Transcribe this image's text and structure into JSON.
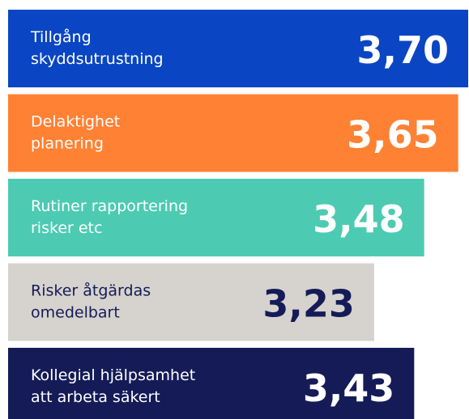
{
  "chart_data": {
    "type": "bar",
    "orientation": "horizontal",
    "categories": [
      [
        "Tillgång",
        "skyddsutrustning"
      ],
      [
        "Delaktighet",
        "planering"
      ],
      [
        "Rutiner rapportering",
        "risker etc"
      ],
      [
        "Risker åtgärdas",
        "omedelbart"
      ],
      [
        "Kollegial hjälpsamhet",
        "att arbeta säkert"
      ]
    ],
    "values": [
      3.7,
      3.65,
      3.48,
      3.23,
      3.43
    ],
    "value_labels": [
      "3,70",
      "3,65",
      "3,48",
      "3,23",
      "3,43"
    ],
    "colors": [
      "#0a46c4",
      "#ff8133",
      "#4ccbb2",
      "#d6d3ce",
      "#141b57"
    ],
    "text_colors": [
      "#ffffff",
      "#ffffff",
      "#ffffff",
      "#141b57",
      "#ffffff"
    ],
    "xlim": [
      1.4,
      3.7
    ]
  }
}
